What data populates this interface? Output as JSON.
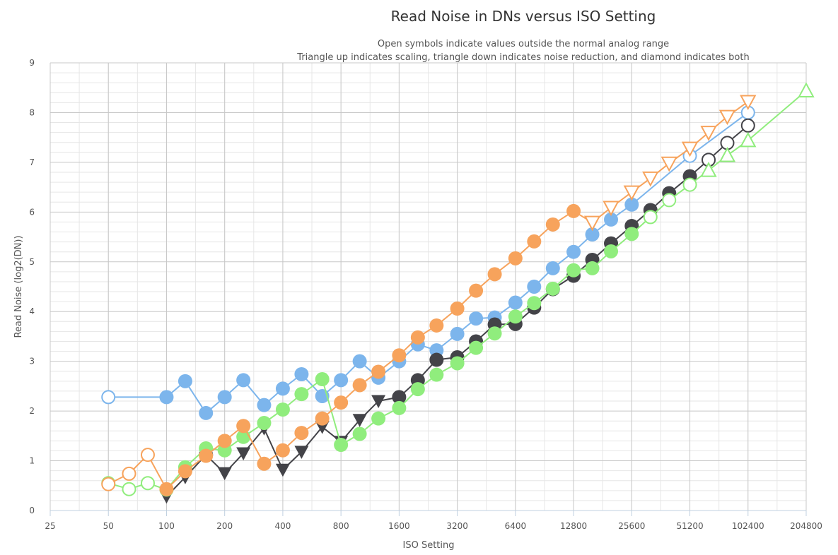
{
  "chart_data": {
    "type": "scatter",
    "title": "Read Noise in DNs versus ISO Setting",
    "subtitle_lines": [
      "Open symbols indicate values outside the normal analog range",
      "Triangle up indicates scaling, triangle down indicates noise reduction, and diamond indicates both"
    ],
    "xlabel": "ISO Setting",
    "ylabel": "Read Noise (log2(DN))",
    "x_scale": "log2",
    "xlim": [
      25,
      204800
    ],
    "ylim": [
      0,
      9
    ],
    "x_ticks": [
      25,
      50,
      100,
      200,
      400,
      800,
      1600,
      3200,
      6400,
      12800,
      25600,
      51200,
      102400,
      204800
    ],
    "y_ticks": [
      0,
      1,
      2,
      3,
      4,
      5,
      6,
      7,
      8,
      9
    ],
    "grid": true,
    "legend": "none",
    "series": [
      {
        "color": "#7cb5ec",
        "points": [
          {
            "x": 50,
            "y": 2.28,
            "marker": "open-circle"
          },
          {
            "x": 100,
            "y": 2.28,
            "marker": "circle"
          },
          {
            "x": 125,
            "y": 2.6,
            "marker": "circle"
          },
          {
            "x": 160,
            "y": 1.96,
            "marker": "circle"
          },
          {
            "x": 200,
            "y": 2.28,
            "marker": "circle"
          },
          {
            "x": 250,
            "y": 2.62,
            "marker": "circle"
          },
          {
            "x": 320,
            "y": 2.12,
            "marker": "circle"
          },
          {
            "x": 400,
            "y": 2.45,
            "marker": "circle"
          },
          {
            "x": 500,
            "y": 2.74,
            "marker": "circle"
          },
          {
            "x": 640,
            "y": 2.3,
            "marker": "circle"
          },
          {
            "x": 800,
            "y": 2.62,
            "marker": "circle"
          },
          {
            "x": 1000,
            "y": 3.0,
            "marker": "circle"
          },
          {
            "x": 1250,
            "y": 2.67,
            "marker": "circle"
          },
          {
            "x": 1600,
            "y": 3.0,
            "marker": "circle"
          },
          {
            "x": 2000,
            "y": 3.34,
            "marker": "circle"
          },
          {
            "x": 2500,
            "y": 3.22,
            "marker": "circle"
          },
          {
            "x": 3200,
            "y": 3.55,
            "marker": "circle"
          },
          {
            "x": 4000,
            "y": 3.86,
            "marker": "circle"
          },
          {
            "x": 5000,
            "y": 3.88,
            "marker": "circle"
          },
          {
            "x": 6400,
            "y": 4.18,
            "marker": "circle"
          },
          {
            "x": 8000,
            "y": 4.5,
            "marker": "circle"
          },
          {
            "x": 10000,
            "y": 4.87,
            "marker": "circle"
          },
          {
            "x": 12800,
            "y": 5.2,
            "marker": "circle"
          },
          {
            "x": 16000,
            "y": 5.55,
            "marker": "circle"
          },
          {
            "x": 20000,
            "y": 5.85,
            "marker": "circle"
          },
          {
            "x": 25600,
            "y": 6.15,
            "marker": "circle"
          },
          {
            "x": 51200,
            "y": 7.13,
            "marker": "open-circle"
          },
          {
            "x": 102400,
            "y": 8.0,
            "marker": "open-circle"
          }
        ]
      },
      {
        "color": "#434348",
        "points": [
          {
            "x": 100,
            "y": 0.28,
            "marker": "triangle-down"
          },
          {
            "x": 125,
            "y": 0.67,
            "marker": "triangle-down"
          },
          {
            "x": 160,
            "y": 1.12,
            "marker": "circle"
          },
          {
            "x": 200,
            "y": 0.75,
            "marker": "triangle-down"
          },
          {
            "x": 250,
            "y": 1.15,
            "marker": "triangle-down"
          },
          {
            "x": 320,
            "y": 1.65,
            "marker": "triangle-down"
          },
          {
            "x": 400,
            "y": 0.82,
            "marker": "triangle-down"
          },
          {
            "x": 500,
            "y": 1.18,
            "marker": "triangle-down"
          },
          {
            "x": 640,
            "y": 1.68,
            "marker": "triangle-down"
          },
          {
            "x": 800,
            "y": 1.38,
            "marker": "triangle-down"
          },
          {
            "x": 1000,
            "y": 1.82,
            "marker": "triangle-down"
          },
          {
            "x": 1250,
            "y": 2.2,
            "marker": "triangle-down"
          },
          {
            "x": 1600,
            "y": 2.28,
            "marker": "circle"
          },
          {
            "x": 2000,
            "y": 2.62,
            "marker": "circle"
          },
          {
            "x": 2500,
            "y": 3.03,
            "marker": "circle"
          },
          {
            "x": 3200,
            "y": 3.08,
            "marker": "circle"
          },
          {
            "x": 4000,
            "y": 3.4,
            "marker": "circle"
          },
          {
            "x": 5000,
            "y": 3.74,
            "marker": "circle"
          },
          {
            "x": 6400,
            "y": 3.75,
            "marker": "circle"
          },
          {
            "x": 8000,
            "y": 4.08,
            "marker": "circle"
          },
          {
            "x": 10000,
            "y": 4.45,
            "marker": "circle"
          },
          {
            "x": 12800,
            "y": 4.72,
            "marker": "circle"
          },
          {
            "x": 16000,
            "y": 5.04,
            "marker": "circle"
          },
          {
            "x": 20000,
            "y": 5.37,
            "marker": "circle"
          },
          {
            "x": 25600,
            "y": 5.72,
            "marker": "circle"
          },
          {
            "x": 32000,
            "y": 6.04,
            "marker": "circle"
          },
          {
            "x": 40000,
            "y": 6.38,
            "marker": "circle"
          },
          {
            "x": 51200,
            "y": 6.72,
            "marker": "circle"
          },
          {
            "x": 64000,
            "y": 7.05,
            "marker": "open-circle"
          },
          {
            "x": 80000,
            "y": 7.39,
            "marker": "open-circle"
          },
          {
            "x": 102400,
            "y": 7.74,
            "marker": "open-circle"
          }
        ]
      },
      {
        "color": "#90ed7d",
        "points": [
          {
            "x": 50,
            "y": 0.55,
            "marker": "open-circle"
          },
          {
            "x": 64,
            "y": 0.43,
            "marker": "open-circle"
          },
          {
            "x": 80,
            "y": 0.55,
            "marker": "open-circle"
          },
          {
            "x": 100,
            "y": 0.42,
            "marker": "circle"
          },
          {
            "x": 125,
            "y": 0.87,
            "marker": "circle"
          },
          {
            "x": 160,
            "y": 1.25,
            "marker": "circle"
          },
          {
            "x": 200,
            "y": 1.21,
            "marker": "circle"
          },
          {
            "x": 250,
            "y": 1.48,
            "marker": "circle"
          },
          {
            "x": 320,
            "y": 1.76,
            "marker": "circle"
          },
          {
            "x": 400,
            "y": 2.03,
            "marker": "circle"
          },
          {
            "x": 500,
            "y": 2.34,
            "marker": "circle"
          },
          {
            "x": 640,
            "y": 2.64,
            "marker": "circle"
          },
          {
            "x": 800,
            "y": 1.32,
            "marker": "circle"
          },
          {
            "x": 1000,
            "y": 1.54,
            "marker": "circle"
          },
          {
            "x": 1250,
            "y": 1.85,
            "marker": "circle"
          },
          {
            "x": 1600,
            "y": 2.06,
            "marker": "circle"
          },
          {
            "x": 2000,
            "y": 2.44,
            "marker": "circle"
          },
          {
            "x": 2500,
            "y": 2.73,
            "marker": "circle"
          },
          {
            "x": 3200,
            "y": 2.96,
            "marker": "circle"
          },
          {
            "x": 4000,
            "y": 3.27,
            "marker": "circle"
          },
          {
            "x": 5000,
            "y": 3.56,
            "marker": "circle"
          },
          {
            "x": 6400,
            "y": 3.9,
            "marker": "circle"
          },
          {
            "x": 8000,
            "y": 4.17,
            "marker": "circle"
          },
          {
            "x": 10000,
            "y": 4.46,
            "marker": "circle"
          },
          {
            "x": 12800,
            "y": 4.83,
            "marker": "circle"
          },
          {
            "x": 16000,
            "y": 4.87,
            "marker": "circle"
          },
          {
            "x": 20000,
            "y": 5.21,
            "marker": "circle"
          },
          {
            "x": 25600,
            "y": 5.56,
            "marker": "circle"
          },
          {
            "x": 32000,
            "y": 5.9,
            "marker": "open-circle"
          },
          {
            "x": 40000,
            "y": 6.24,
            "marker": "open-circle"
          },
          {
            "x": 51200,
            "y": 6.55,
            "marker": "open-circle"
          },
          {
            "x": 64000,
            "y": 6.84,
            "marker": "open-triangle-up"
          },
          {
            "x": 80000,
            "y": 7.14,
            "marker": "open-triangle-up"
          },
          {
            "x": 102400,
            "y": 7.44,
            "marker": "open-triangle-up"
          },
          {
            "x": 204800,
            "y": 8.44,
            "marker": "open-triangle-up"
          }
        ]
      },
      {
        "color": "#f7a35c",
        "points": [
          {
            "x": 50,
            "y": 0.53,
            "marker": "open-circle"
          },
          {
            "x": 64,
            "y": 0.74,
            "marker": "open-circle"
          },
          {
            "x": 80,
            "y": 1.12,
            "marker": "open-circle"
          },
          {
            "x": 100,
            "y": 0.43,
            "marker": "circle"
          },
          {
            "x": 125,
            "y": 0.79,
            "marker": "circle"
          },
          {
            "x": 160,
            "y": 1.1,
            "marker": "circle"
          },
          {
            "x": 200,
            "y": 1.4,
            "marker": "circle"
          },
          {
            "x": 250,
            "y": 1.7,
            "marker": "circle"
          },
          {
            "x": 320,
            "y": 0.94,
            "marker": "circle"
          },
          {
            "x": 400,
            "y": 1.21,
            "marker": "circle"
          },
          {
            "x": 500,
            "y": 1.56,
            "marker": "circle"
          },
          {
            "x": 640,
            "y": 1.85,
            "marker": "circle"
          },
          {
            "x": 800,
            "y": 2.17,
            "marker": "circle"
          },
          {
            "x": 1000,
            "y": 2.52,
            "marker": "circle"
          },
          {
            "x": 1250,
            "y": 2.79,
            "marker": "circle"
          },
          {
            "x": 1600,
            "y": 3.12,
            "marker": "circle"
          },
          {
            "x": 2000,
            "y": 3.48,
            "marker": "circle"
          },
          {
            "x": 2500,
            "y": 3.72,
            "marker": "circle"
          },
          {
            "x": 3200,
            "y": 4.06,
            "marker": "circle"
          },
          {
            "x": 4000,
            "y": 4.42,
            "marker": "circle"
          },
          {
            "x": 5000,
            "y": 4.75,
            "marker": "circle"
          },
          {
            "x": 6400,
            "y": 5.07,
            "marker": "circle"
          },
          {
            "x": 8000,
            "y": 5.41,
            "marker": "circle"
          },
          {
            "x": 10000,
            "y": 5.75,
            "marker": "circle"
          },
          {
            "x": 12800,
            "y": 6.02,
            "marker": "circle"
          },
          {
            "x": 16000,
            "y": 5.79,
            "marker": "open-triangle-down"
          },
          {
            "x": 20000,
            "y": 6.09,
            "marker": "open-triangle-down"
          },
          {
            "x": 25600,
            "y": 6.4,
            "marker": "open-triangle-down"
          },
          {
            "x": 32000,
            "y": 6.68,
            "marker": "open-triangle-down"
          },
          {
            "x": 40000,
            "y": 6.98,
            "marker": "open-triangle-down"
          },
          {
            "x": 51200,
            "y": 7.28,
            "marker": "open-triangle-down"
          },
          {
            "x": 64000,
            "y": 7.6,
            "marker": "open-triangle-down"
          },
          {
            "x": 80000,
            "y": 7.92,
            "marker": "open-triangle-down"
          },
          {
            "x": 102400,
            "y": 8.22,
            "marker": "open-triangle-down"
          }
        ]
      }
    ]
  }
}
